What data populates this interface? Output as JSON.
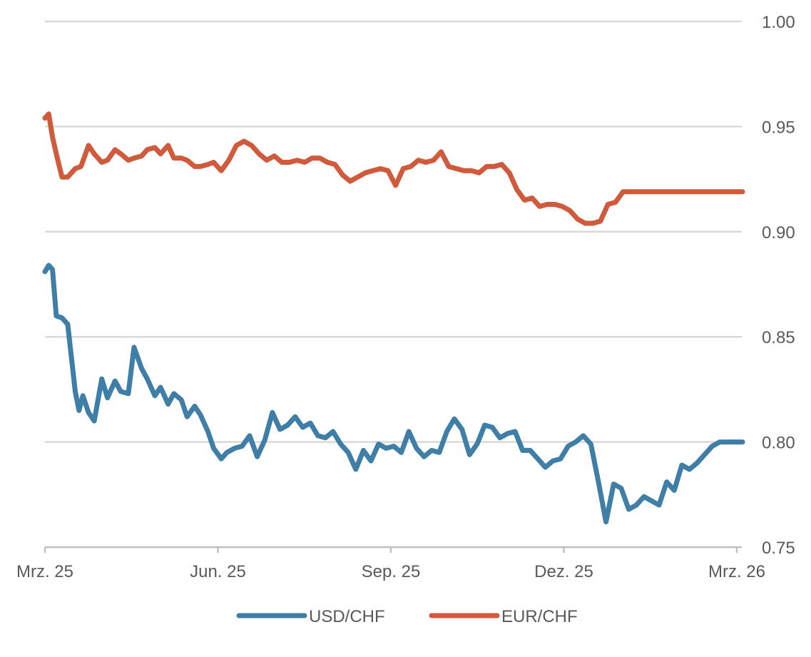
{
  "chart_data": {
    "type": "line",
    "title": "",
    "xlabel": "",
    "ylabel": "",
    "ylim": [
      0.75,
      1.0
    ],
    "grid": true,
    "legend_position": "bottom",
    "x_tick_labels": [
      "Mrz. 25",
      "Jun. 25",
      "Sep. 25",
      "Dez. 25",
      "Mrz. 26"
    ],
    "y_tick_labels": [
      "0.75",
      "0.80",
      "0.85",
      "0.90",
      "0.95",
      "1.00"
    ],
    "y_ticks": [
      0.75,
      0.8,
      0.85,
      0.9,
      0.95,
      1.0
    ],
    "x_start": "2025-03-01",
    "x_end": "2026-03-01",
    "colors": {
      "USD/CHF": "#3f7ea6",
      "EUR/CHF": "#cf5a3c",
      "grid": "#d9d9d9",
      "axis": "#bfbfbf",
      "text": "#595959"
    },
    "series": [
      {
        "name": "USD/CHF",
        "color": "#3f7ea6",
        "dates": [
          "2025-03-01",
          "2025-03-03",
          "2025-03-05",
          "2025-03-07",
          "2025-03-10",
          "2025-03-13",
          "2025-03-17",
          "2025-03-19",
          "2025-03-21",
          "2025-03-24",
          "2025-03-27",
          "2025-03-31",
          "2025-04-03",
          "2025-04-07",
          "2025-04-10",
          "2025-04-14",
          "2025-04-17",
          "2025-04-21",
          "2025-04-24",
          "2025-04-28",
          "2025-05-01",
          "2025-05-05",
          "2025-05-08",
          "2025-05-12",
          "2025-05-15",
          "2025-05-19",
          "2025-05-22",
          "2025-05-26",
          "2025-05-29",
          "2025-06-02",
          "2025-06-05",
          "2025-06-09",
          "2025-06-13",
          "2025-06-17",
          "2025-06-21",
          "2025-06-25",
          "2025-06-29",
          "2025-07-03",
          "2025-07-07",
          "2025-07-11",
          "2025-07-15",
          "2025-07-19",
          "2025-07-23",
          "2025-07-27",
          "2025-07-31",
          "2025-08-04",
          "2025-08-08",
          "2025-08-12",
          "2025-08-16",
          "2025-08-20",
          "2025-08-24",
          "2025-08-28",
          "2025-09-01",
          "2025-09-05",
          "2025-09-09",
          "2025-09-13",
          "2025-09-17",
          "2025-09-21",
          "2025-09-25",
          "2025-09-29",
          "2025-10-03",
          "2025-10-07",
          "2025-10-11",
          "2025-10-15",
          "2025-10-19",
          "2025-10-23",
          "2025-10-27",
          "2025-10-31",
          "2025-11-04",
          "2025-11-08",
          "2025-11-12",
          "2025-11-16",
          "2025-11-20",
          "2025-11-24",
          "2025-11-28",
          "2025-12-02",
          "2025-12-06",
          "2025-12-10",
          "2025-12-14",
          "2025-12-18",
          "2025-12-22",
          "2025-12-26",
          "2025-12-30",
          "2026-01-03",
          "2026-01-07",
          "2026-01-11",
          "2026-01-15",
          "2026-01-19",
          "2026-01-23",
          "2026-01-27",
          "2026-01-31",
          "2026-02-04",
          "2026-02-08",
          "2026-02-12",
          "2026-02-16",
          "2026-02-20",
          "2026-02-24",
          "2026-03-01",
          "2026-03-04"
        ],
        "values": [
          0.881,
          0.884,
          0.882,
          0.86,
          0.859,
          0.856,
          0.824,
          0.815,
          0.822,
          0.814,
          0.81,
          0.83,
          0.821,
          0.829,
          0.824,
          0.823,
          0.845,
          0.835,
          0.83,
          0.822,
          0.826,
          0.818,
          0.823,
          0.82,
          0.812,
          0.817,
          0.813,
          0.805,
          0.797,
          0.792,
          0.795,
          0.797,
          0.798,
          0.803,
          0.793,
          0.801,
          0.814,
          0.806,
          0.808,
          0.812,
          0.807,
          0.809,
          0.803,
          0.802,
          0.805,
          0.799,
          0.795,
          0.787,
          0.796,
          0.791,
          0.799,
          0.797,
          0.798,
          0.795,
          0.805,
          0.797,
          0.793,
          0.796,
          0.795,
          0.805,
          0.811,
          0.806,
          0.794,
          0.799,
          0.808,
          0.807,
          0.802,
          0.804,
          0.805,
          0.796,
          0.796,
          0.792,
          0.788,
          0.791,
          0.792,
          0.798,
          0.8,
          0.803,
          0.799,
          0.781,
          0.762,
          0.78,
          0.778,
          0.768,
          0.77,
          0.774,
          0.772,
          0.77,
          0.781,
          0.777,
          0.789,
          0.787,
          0.79,
          0.794,
          0.798,
          0.8,
          0.8,
          0.8,
          0.8
        ]
      },
      {
        "name": "EUR/CHF",
        "color": "#cf5a3c",
        "dates": [
          "2025-03-01",
          "2025-03-03",
          "2025-03-05",
          "2025-03-07",
          "2025-03-10",
          "2025-03-13",
          "2025-03-17",
          "2025-03-20",
          "2025-03-24",
          "2025-03-27",
          "2025-03-31",
          "2025-04-03",
          "2025-04-07",
          "2025-04-10",
          "2025-04-14",
          "2025-04-17",
          "2025-04-21",
          "2025-04-24",
          "2025-04-28",
          "2025-05-01",
          "2025-05-05",
          "2025-05-08",
          "2025-05-12",
          "2025-05-15",
          "2025-05-19",
          "2025-05-22",
          "2025-05-26",
          "2025-05-29",
          "2025-06-02",
          "2025-06-06",
          "2025-06-10",
          "2025-06-14",
          "2025-06-18",
          "2025-06-22",
          "2025-06-26",
          "2025-06-30",
          "2025-07-04",
          "2025-07-08",
          "2025-07-12",
          "2025-07-16",
          "2025-07-20",
          "2025-07-24",
          "2025-07-28",
          "2025-08-01",
          "2025-08-05",
          "2025-08-09",
          "2025-08-13",
          "2025-08-17",
          "2025-08-21",
          "2025-08-25",
          "2025-08-29",
          "2025-09-02",
          "2025-09-06",
          "2025-09-10",
          "2025-09-14",
          "2025-09-18",
          "2025-09-22",
          "2025-09-26",
          "2025-09-30",
          "2025-10-04",
          "2025-10-08",
          "2025-10-12",
          "2025-10-16",
          "2025-10-20",
          "2025-10-24",
          "2025-10-28",
          "2025-11-01",
          "2025-11-05",
          "2025-11-09",
          "2025-11-13",
          "2025-11-17",
          "2025-11-21",
          "2025-11-25",
          "2025-11-29",
          "2025-12-03",
          "2025-12-07",
          "2025-12-11",
          "2025-12-15",
          "2025-12-19",
          "2025-12-23",
          "2025-12-27",
          "2025-12-31",
          "2026-01-04",
          "2026-01-08",
          "2026-01-12",
          "2026-01-16",
          "2026-01-20",
          "2026-01-24",
          "2026-01-28",
          "2026-02-01",
          "2026-02-05",
          "2026-02-09",
          "2026-02-13",
          "2026-02-17",
          "2026-02-21",
          "2026-02-25",
          "2026-03-01",
          "2026-03-04"
        ],
        "values": [
          0.954,
          0.956,
          0.945,
          0.937,
          0.926,
          0.926,
          0.93,
          0.931,
          0.941,
          0.937,
          0.933,
          0.934,
          0.939,
          0.937,
          0.934,
          0.935,
          0.936,
          0.939,
          0.94,
          0.937,
          0.941,
          0.935,
          0.935,
          0.934,
          0.931,
          0.931,
          0.932,
          0.933,
          0.929,
          0.934,
          0.941,
          0.943,
          0.941,
          0.937,
          0.934,
          0.936,
          0.933,
          0.933,
          0.934,
          0.933,
          0.935,
          0.935,
          0.933,
          0.932,
          0.927,
          0.924,
          0.926,
          0.928,
          0.929,
          0.93,
          0.929,
          0.922,
          0.93,
          0.931,
          0.934,
          0.933,
          0.934,
          0.938,
          0.931,
          0.93,
          0.929,
          0.929,
          0.928,
          0.931,
          0.931,
          0.932,
          0.928,
          0.92,
          0.915,
          0.916,
          0.912,
          0.913,
          0.913,
          0.912,
          0.91,
          0.906,
          0.904,
          0.904,
          0.905,
          0.913,
          0.914,
          0.919,
          0.919,
          0.919,
          0.919,
          0.919,
          0.919,
          0.919,
          0.919,
          0.919,
          0.919,
          0.919,
          0.919,
          0.919,
          0.919,
          0.919,
          0.919,
          0.919
        ]
      }
    ]
  }
}
